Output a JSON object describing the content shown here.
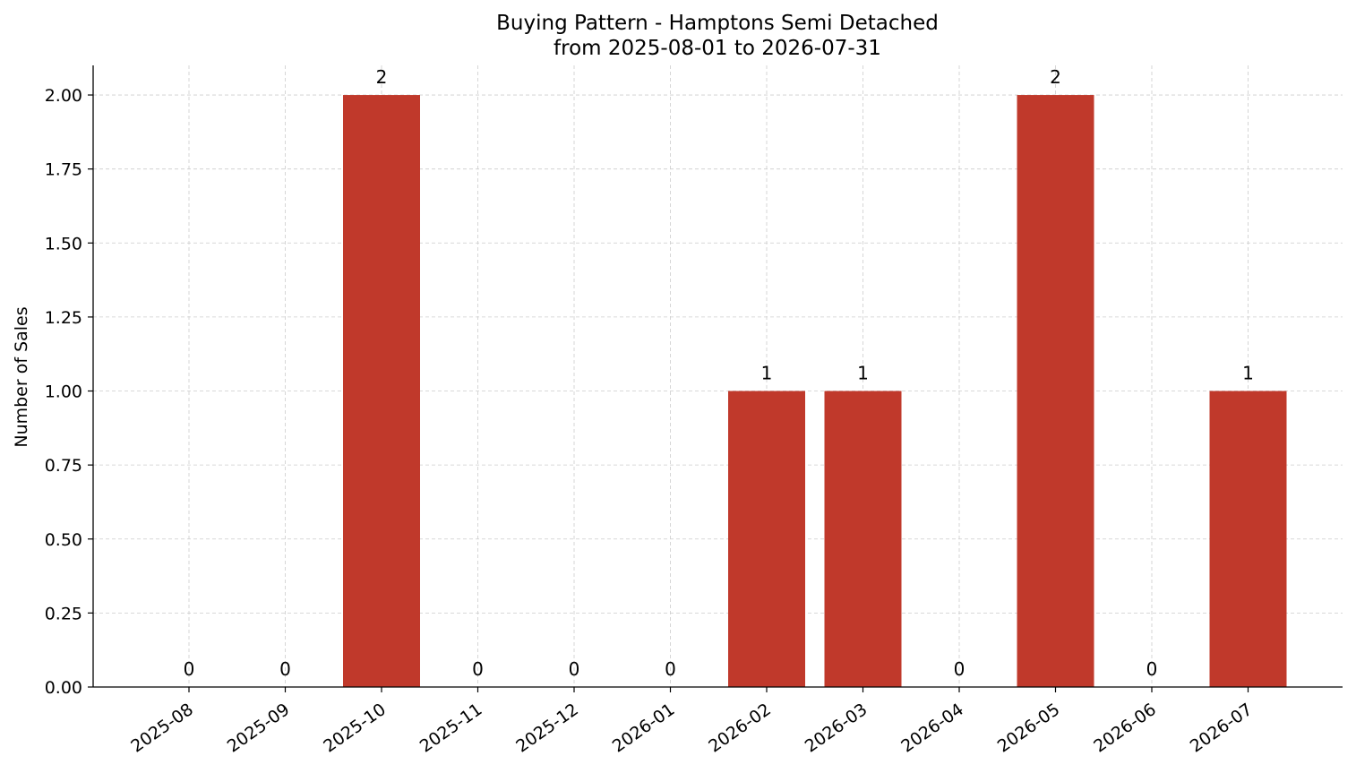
{
  "chart_data": {
    "type": "bar",
    "title": "Buying Pattern - Hamptons Semi Detached",
    "subtitle": "from 2025-08-01 to 2026-07-31",
    "xlabel": "",
    "ylabel": "Number of Sales",
    "categories": [
      "2025-08",
      "2025-09",
      "2025-10",
      "2025-11",
      "2025-12",
      "2026-01",
      "2026-02",
      "2026-03",
      "2026-04",
      "2026-05",
      "2026-06",
      "2026-07"
    ],
    "values": [
      0,
      0,
      2,
      0,
      0,
      0,
      1,
      1,
      0,
      2,
      0,
      1
    ],
    "data_labels": [
      "0",
      "0",
      "2",
      "0",
      "0",
      "0",
      "1",
      "1",
      "0",
      "2",
      "0",
      "1"
    ],
    "ylim": [
      0,
      2.1
    ],
    "yticks": [
      0,
      0.25,
      0.5,
      0.75,
      1.0,
      1.25,
      1.5,
      1.75,
      2.0
    ],
    "ytick_labels": [
      "0.00",
      "0.25",
      "0.50",
      "0.75",
      "1.00",
      "1.25",
      "1.50",
      "1.75",
      "2.00"
    ],
    "bar_color": "#c0392b",
    "grid": true,
    "legend": "none"
  }
}
